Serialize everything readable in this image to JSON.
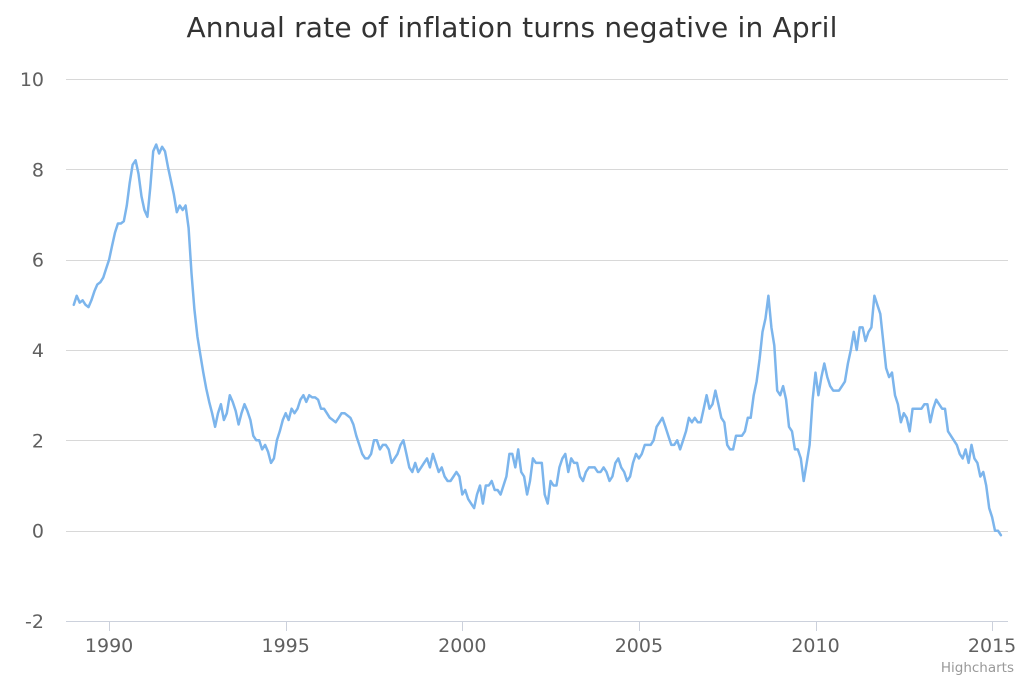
{
  "chart_data": {
    "type": "line",
    "title": "Annual rate of inflation turns negative in April",
    "xlabel": "",
    "ylabel": "",
    "x_start_year": 1989,
    "interval": "monthly",
    "x_end": "April 2015",
    "xticks": [
      1990,
      1995,
      2000,
      2005,
      2010,
      2015
    ],
    "yticks": [
      10,
      8,
      6,
      4,
      2,
      0,
      -2
    ],
    "ylim": [
      -2,
      10
    ],
    "grid": true,
    "legend": false,
    "markers": false,
    "colors": {
      "line": "#7cb5ec",
      "grid": "#d8d8d8",
      "axis_line": "#ccd1dc",
      "tick": "#ccd1dc",
      "labels": "#606060",
      "title": "#333333",
      "credits": "#999999",
      "background": "#ffffff"
    },
    "values": [
      5.0,
      5.2,
      5.05,
      5.1,
      5.0,
      4.95,
      5.1,
      5.3,
      5.45,
      5.5,
      5.6,
      5.8,
      6.0,
      6.3,
      6.6,
      6.8,
      6.8,
      6.85,
      7.2,
      7.7,
      8.1,
      8.2,
      7.9,
      7.4,
      7.1,
      6.95,
      7.6,
      8.4,
      8.55,
      8.35,
      8.5,
      8.4,
      8.05,
      7.75,
      7.45,
      7.05,
      7.2,
      7.1,
      7.2,
      6.7,
      5.7,
      4.9,
      4.3,
      3.9,
      3.5,
      3.15,
      2.85,
      2.6,
      2.3,
      2.6,
      2.8,
      2.45,
      2.6,
      3.0,
      2.85,
      2.65,
      2.35,
      2.6,
      2.8,
      2.65,
      2.45,
      2.1,
      2.0,
      2.0,
      1.8,
      1.9,
      1.75,
      1.5,
      1.6,
      2.0,
      2.2,
      2.45,
      2.6,
      2.45,
      2.7,
      2.6,
      2.7,
      2.9,
      3.0,
      2.85,
      3.0,
      2.95,
      2.95,
      2.9,
      2.7,
      2.7,
      2.6,
      2.5,
      2.45,
      2.4,
      2.5,
      2.6,
      2.6,
      2.55,
      2.5,
      2.35,
      2.1,
      1.9,
      1.7,
      1.6,
      1.6,
      1.7,
      2.0,
      2.0,
      1.8,
      1.9,
      1.9,
      1.8,
      1.5,
      1.6,
      1.7,
      1.9,
      2.0,
      1.7,
      1.4,
      1.3,
      1.5,
      1.3,
      1.4,
      1.5,
      1.6,
      1.4,
      1.7,
      1.5,
      1.3,
      1.4,
      1.2,
      1.1,
      1.1,
      1.2,
      1.3,
      1.2,
      0.8,
      0.9,
      0.7,
      0.6,
      0.5,
      0.8,
      1.0,
      0.6,
      1.0,
      1.0,
      1.1,
      0.9,
      0.9,
      0.8,
      1.0,
      1.2,
      1.7,
      1.7,
      1.4,
      1.8,
      1.3,
      1.2,
      0.8,
      1.1,
      1.6,
      1.5,
      1.5,
      1.5,
      0.8,
      0.6,
      1.1,
      1.0,
      1.0,
      1.4,
      1.6,
      1.7,
      1.3,
      1.6,
      1.5,
      1.5,
      1.2,
      1.1,
      1.3,
      1.4,
      1.4,
      1.4,
      1.3,
      1.3,
      1.4,
      1.3,
      1.1,
      1.2,
      1.5,
      1.6,
      1.4,
      1.3,
      1.1,
      1.2,
      1.5,
      1.7,
      1.6,
      1.7,
      1.9,
      1.9,
      1.9,
      2.0,
      2.3,
      2.4,
      2.5,
      2.3,
      2.1,
      1.9,
      1.9,
      2.0,
      1.8,
      2.0,
      2.2,
      2.5,
      2.4,
      2.5,
      2.4,
      2.4,
      2.7,
      3.0,
      2.7,
      2.8,
      3.1,
      2.8,
      2.5,
      2.4,
      1.9,
      1.8,
      1.8,
      2.1,
      2.1,
      2.1,
      2.2,
      2.5,
      2.5,
      3.0,
      3.3,
      3.8,
      4.4,
      4.7,
      5.2,
      4.5,
      4.1,
      3.1,
      3.0,
      3.2,
      2.9,
      2.3,
      2.2,
      1.8,
      1.8,
      1.6,
      1.1,
      1.5,
      1.9,
      2.9,
      3.5,
      3.0,
      3.4,
      3.7,
      3.4,
      3.2,
      3.1,
      3.1,
      3.1,
      3.2,
      3.3,
      3.7,
      4.0,
      4.4,
      4.0,
      4.5,
      4.5,
      4.2,
      4.4,
      4.5,
      5.2,
      5.0,
      4.8,
      4.2,
      3.6,
      3.4,
      3.5,
      3.0,
      2.8,
      2.4,
      2.6,
      2.5,
      2.2,
      2.7,
      2.7,
      2.7,
      2.7,
      2.8,
      2.8,
      2.4,
      2.7,
      2.9,
      2.8,
      2.7,
      2.7,
      2.2,
      2.1,
      2.0,
      1.9,
      1.7,
      1.6,
      1.8,
      1.5,
      1.9,
      1.6,
      1.5,
      1.2,
      1.3,
      1.0,
      0.5,
      0.3,
      0.0,
      0.0,
      -0.1
    ]
  },
  "credits": {
    "label": "Highcharts"
  }
}
